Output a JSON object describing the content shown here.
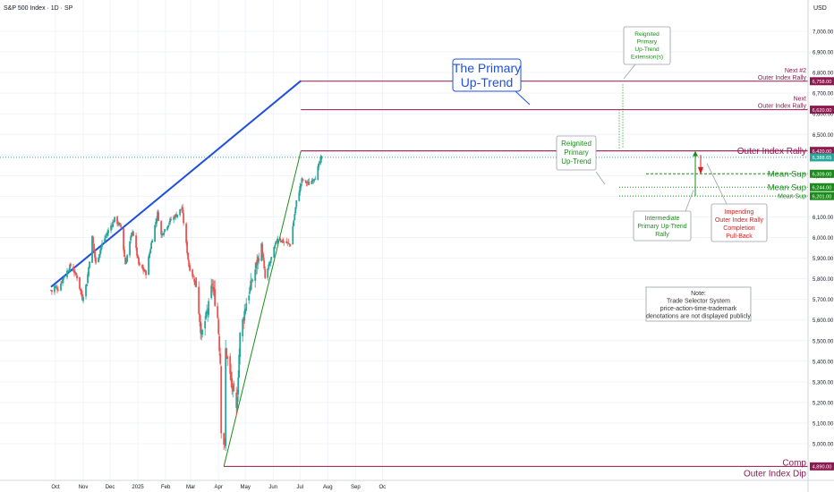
{
  "header": {
    "title": "S&P 500 Index · 1D · SP",
    "currency": "USD"
  },
  "chart_data": {
    "type": "candlestick",
    "ylim": [
      4880,
      7150
    ],
    "y_ticks": [
      "7,000.00",
      "6,900.00",
      "6,800.00",
      "6,700.00",
      "6,600.00",
      "6,500.00",
      "6,400.00",
      "6,300.00",
      "6,200.00",
      "6,100.00",
      "6,000.00",
      "5,900.00",
      "5,800.00",
      "5,700.00",
      "5,600.00",
      "5,500.00",
      "5,400.00",
      "5,300.00",
      "5,200.00",
      "5,100.00",
      "5,000.00"
    ],
    "x_ticks": [
      "Oct",
      "Nov",
      "Dec",
      "2025",
      "Feb",
      "Mar",
      "Apr",
      "May",
      "Jun",
      "Jul",
      "Aug",
      "Sep",
      "Oc"
    ],
    "close_path": [
      [
        "2024-09-26",
        5745
      ],
      [
        "2024-09-27",
        5738
      ],
      [
        "2024-09-30",
        5762
      ],
      [
        "2024-10-04",
        5751
      ],
      [
        "2024-10-11",
        5815
      ],
      [
        "2024-10-18",
        5864
      ],
      [
        "2024-10-25",
        5808
      ],
      [
        "2024-10-31",
        5705
      ],
      [
        "2024-11-05",
        5782
      ],
      [
        "2024-11-11",
        6001
      ],
      [
        "2024-11-15",
        5870
      ],
      [
        "2024-11-22",
        5969
      ],
      [
        "2024-11-29",
        6032
      ],
      [
        "2024-12-06",
        6090
      ],
      [
        "2024-12-13",
        6051
      ],
      [
        "2024-12-18",
        5872
      ],
      [
        "2024-12-26",
        6037
      ],
      [
        "2025-01-02",
        5868
      ],
      [
        "2025-01-10",
        5827
      ],
      [
        "2025-01-17",
        5997
      ],
      [
        "2025-01-23",
        6118
      ],
      [
        "2025-01-27",
        6012
      ],
      [
        "2025-02-06",
        6083
      ],
      [
        "2025-02-14",
        6114
      ],
      [
        "2025-02-19",
        6144
      ],
      [
        "2025-02-27",
        5861
      ],
      [
        "2025-03-07",
        5770
      ],
      [
        "2025-03-13",
        5521
      ],
      [
        "2025-03-21",
        5667
      ],
      [
        "2025-03-25",
        5776
      ],
      [
        "2025-03-31",
        5612
      ],
      [
        "2025-04-03",
        5396
      ],
      [
        "2025-04-04",
        5074
      ],
      [
        "2025-04-08",
        4982
      ],
      [
        "2025-04-09",
        5456
      ],
      [
        "2025-04-16",
        5275
      ],
      [
        "2025-04-21",
        5158
      ],
      [
        "2025-04-25",
        5525
      ],
      [
        "2025-05-02",
        5686
      ],
      [
        "2025-05-12",
        5844
      ],
      [
        "2025-05-19",
        5963
      ],
      [
        "2025-05-23",
        5802
      ],
      [
        "2025-06-06",
        6000
      ],
      [
        "2025-06-13",
        5977
      ],
      [
        "2025-06-20",
        5967
      ],
      [
        "2025-06-27",
        6173
      ],
      [
        "2025-07-03",
        6279
      ],
      [
        "2025-07-11",
        6260
      ],
      [
        "2025-07-18",
        6297
      ],
      [
        "2025-07-25",
        6388
      ]
    ],
    "drawn_lines": [
      {
        "name": "The Primary Up-Trend",
        "points": [
          [
            "2024-09-26",
            5760
          ],
          [
            "2025-07-02",
            6760
          ]
        ],
        "color": "#1f4fe0"
      },
      {
        "name": "Reignited Primary Up-Trend",
        "points": [
          [
            "2025-04-07",
            4890
          ],
          [
            "2025-07-02",
            6420
          ]
        ],
        "color": "#1b8c1b"
      }
    ],
    "levels": [
      {
        "value": 6758,
        "price_label": "6,758.00",
        "label_lines": [
          "Next #2",
          "Outer Index Rally"
        ],
        "color": "#8c1a4f",
        "kind": "solid"
      },
      {
        "value": 6620,
        "price_label": "6,620.00",
        "label_lines": [
          "Next",
          "Outer Index Rally"
        ],
        "color": "#8c1a4f",
        "kind": "solid"
      },
      {
        "value": 6420,
        "price_label": "6,420.00",
        "label_lines": [
          "Outer Index Rally"
        ],
        "color": "#8c1a4f",
        "kind": "solid"
      },
      {
        "value": 6388.65,
        "price_label": "6,388.65",
        "label_lines": [],
        "color": "#26a69a",
        "kind": "last"
      },
      {
        "value": 6309,
        "price_label": "6,309.00",
        "label_lines": [
          "Mean Sup"
        ],
        "color": "#1b8c1b",
        "kind": "dashed"
      },
      {
        "value": 6244,
        "price_label": "6,244.00",
        "label_lines": [
          "Mean Sup"
        ],
        "color": "#1b8c1b",
        "kind": "dotted"
      },
      {
        "value": 6201,
        "price_label": "6,201.00",
        "label_lines": [
          "Mean Sup"
        ],
        "color": "#1b8c1b",
        "kind": "dotted"
      },
      {
        "value": 4890,
        "price_label": "4,890.00",
        "label_lines": [
          "Comp",
          "Outer Index Dip"
        ],
        "color": "#8c1a4f",
        "kind": "solid"
      }
    ],
    "annotations": [
      {
        "id": "primary-uptrend",
        "lines": [
          "The Primary",
          "Up-Trend"
        ],
        "color": "#1f4fe0"
      },
      {
        "id": "reignited-extension",
        "lines": [
          "Reignited",
          "Primary",
          "Up-Trend",
          "Extension(s)"
        ],
        "color": "#1b8c1b"
      },
      {
        "id": "reignited-uptrend",
        "lines": [
          "Reignited",
          "Primary",
          "Up-Trend"
        ],
        "color": "#1b8c1b"
      },
      {
        "id": "intermediate-rally",
        "lines": [
          "Intermediate",
          "Primary Up-Trend",
          "Rally"
        ],
        "color": "#1b8c1b"
      },
      {
        "id": "pullback",
        "lines": [
          "Impending",
          "Outer Index Rally",
          "Completion",
          "Pull-Back"
        ],
        "color": "#d81b1b"
      },
      {
        "id": "note",
        "lines": [
          "Note:",
          "Trade Selector System",
          "price-action-time-trademark",
          "denotations are not displayed publicly"
        ],
        "color": "#333333"
      }
    ],
    "colors": {
      "up": "#26a69a",
      "down": "#ef5350",
      "grid": "#f0f3fa"
    }
  }
}
